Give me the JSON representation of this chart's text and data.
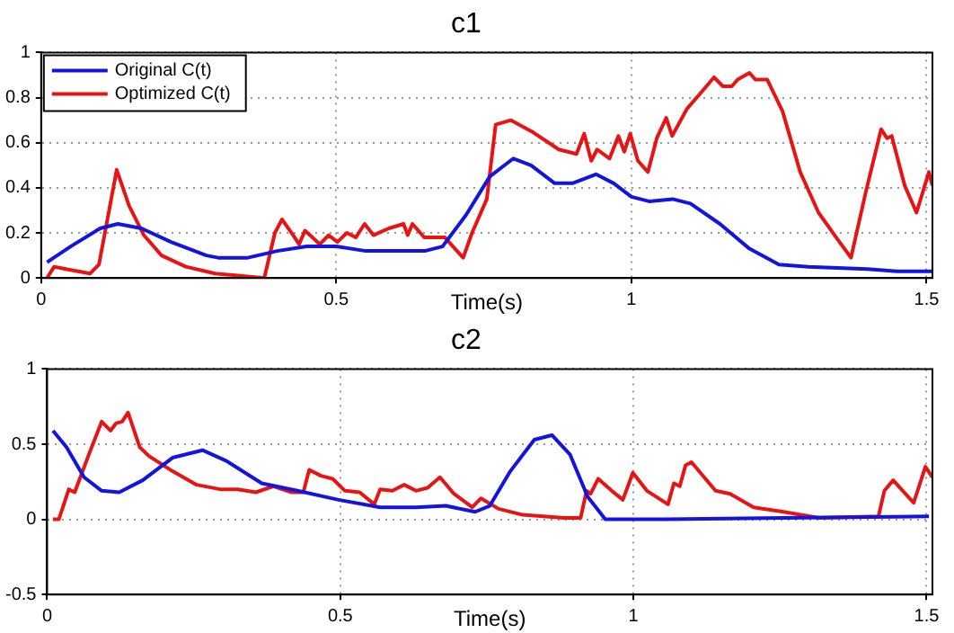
{
  "chart_data": [
    {
      "type": "line",
      "title": "c1",
      "xlabel": "Time(s)",
      "xlim": [
        0,
        1.51
      ],
      "xticks": [
        0,
        0.5,
        1,
        1.5
      ],
      "ylim": [
        0,
        1
      ],
      "yticks": [
        0,
        0.2,
        0.4,
        0.6,
        0.8,
        1
      ],
      "grid": true,
      "legend": "top left",
      "marker": "none",
      "series": [
        {
          "name": "Original C(t)",
          "color": "#1414e0",
          "x": [
            0.01,
            0.05,
            0.1,
            0.13,
            0.17,
            0.22,
            0.28,
            0.3,
            0.35,
            0.4,
            0.45,
            0.5,
            0.55,
            0.6,
            0.65,
            0.68,
            0.72,
            0.76,
            0.8,
            0.83,
            0.87,
            0.9,
            0.94,
            0.97,
            1.0,
            1.03,
            1.07,
            1.1,
            1.15,
            1.2,
            1.25,
            1.3,
            1.4,
            1.45,
            1.51
          ],
          "values": [
            0.07,
            0.14,
            0.22,
            0.24,
            0.22,
            0.16,
            0.1,
            0.09,
            0.09,
            0.12,
            0.14,
            0.14,
            0.12,
            0.12,
            0.12,
            0.14,
            0.28,
            0.45,
            0.53,
            0.5,
            0.42,
            0.42,
            0.46,
            0.42,
            0.36,
            0.34,
            0.35,
            0.33,
            0.24,
            0.13,
            0.06,
            0.05,
            0.04,
            0.03,
            0.03
          ]
        },
        {
          "name": "Optimized C(t)",
          "color": "#e81414",
          "x": [
            0.01,
            0.022,
            0.042,
            0.083,
            0.098,
            0.128,
            0.149,
            0.174,
            0.204,
            0.245,
            0.295,
            0.378,
            0.396,
            0.408,
            0.427,
            0.437,
            0.447,
            0.472,
            0.487,
            0.502,
            0.518,
            0.533,
            0.548,
            0.563,
            0.589,
            0.614,
            0.621,
            0.629,
            0.649,
            0.674,
            0.684,
            0.715,
            0.73,
            0.755,
            0.77,
            0.796,
            0.831,
            0.877,
            0.907,
            0.92,
            0.932,
            0.942,
            0.963,
            0.978,
            0.988,
            0.998,
            1.011,
            1.028,
            1.043,
            1.059,
            1.069,
            1.094,
            1.114,
            1.14,
            1.155,
            1.17,
            1.18,
            1.2,
            1.21,
            1.23,
            1.256,
            1.286,
            1.317,
            1.347,
            1.372,
            1.397,
            1.423,
            1.433,
            1.441,
            1.463,
            1.483,
            1.504,
            1.51
          ],
          "values": [
            0,
            0.05,
            0.04,
            0.02,
            0.06,
            0.48,
            0.32,
            0.19,
            0.1,
            0.05,
            0.02,
            0,
            0.2,
            0.26,
            0.19,
            0.15,
            0.21,
            0.15,
            0.19,
            0.16,
            0.2,
            0.18,
            0.24,
            0.19,
            0.22,
            0.24,
            0.19,
            0.24,
            0.18,
            0.18,
            0.18,
            0.09,
            0.2,
            0.35,
            0.68,
            0.7,
            0.65,
            0.57,
            0.55,
            0.64,
            0.52,
            0.57,
            0.53,
            0.63,
            0.56,
            0.64,
            0.52,
            0.47,
            0.62,
            0.71,
            0.63,
            0.75,
            0.81,
            0.89,
            0.85,
            0.85,
            0.88,
            0.91,
            0.88,
            0.88,
            0.74,
            0.47,
            0.29,
            0.18,
            0.09,
            0.38,
            0.66,
            0.62,
            0.63,
            0.41,
            0.29,
            0.47,
            0.41
          ]
        }
      ]
    },
    {
      "type": "line",
      "title": "c2",
      "xlabel": "Time(s)",
      "xlim": [
        0,
        1.51
      ],
      "xticks": [
        0,
        0.5,
        1,
        1.5
      ],
      "ylim": [
        -0.5,
        1
      ],
      "yticks": [
        -0.5,
        0,
        0.5,
        1
      ],
      "grid": true,
      "marker": "none",
      "series": [
        {
          "color": "#1414e0",
          "x": [
            0.01,
            0.033,
            0.063,
            0.093,
            0.123,
            0.163,
            0.214,
            0.265,
            0.305,
            0.366,
            0.427,
            0.497,
            0.568,
            0.629,
            0.68,
            0.73,
            0.755,
            0.79,
            0.831,
            0.861,
            0.892,
            0.922,
            0.952,
            1.054,
            1.256,
            1.504
          ],
          "values": [
            0.59,
            0.48,
            0.28,
            0.19,
            0.18,
            0.26,
            0.41,
            0.46,
            0.39,
            0.24,
            0.19,
            0.13,
            0.08,
            0.08,
            0.09,
            0.05,
            0.09,
            0.32,
            0.53,
            0.56,
            0.43,
            0.15,
            0,
            0,
            0.01,
            0.02
          ]
        },
        {
          "color": "#e81414",
          "x": [
            0.01,
            0.02,
            0.037,
            0.047,
            0.073,
            0.093,
            0.108,
            0.118,
            0.128,
            0.138,
            0.158,
            0.174,
            0.214,
            0.255,
            0.295,
            0.325,
            0.356,
            0.386,
            0.417,
            0.437,
            0.447,
            0.467,
            0.487,
            0.508,
            0.533,
            0.558,
            0.568,
            0.589,
            0.609,
            0.629,
            0.649,
            0.67,
            0.694,
            0.725,
            0.74,
            0.77,
            0.811,
            0.882,
            0.91,
            0.92,
            0.927,
            0.94,
            0.963,
            0.982,
            0.999,
            1.023,
            1.059,
            1.069,
            1.079,
            1.089,
            1.099,
            1.14,
            1.165,
            1.205,
            1.256,
            1.317,
            1.418,
            1.428,
            1.443,
            1.478,
            1.498,
            1.51
          ],
          "values": [
            0,
            0,
            0.2,
            0.18,
            0.45,
            0.65,
            0.59,
            0.64,
            0.65,
            0.71,
            0.48,
            0.42,
            0.32,
            0.23,
            0.2,
            0.2,
            0.18,
            0.22,
            0.18,
            0.18,
            0.33,
            0.29,
            0.27,
            0.19,
            0.18,
            0.1,
            0.2,
            0.19,
            0.23,
            0.19,
            0.21,
            0.28,
            0.17,
            0.08,
            0.14,
            0.07,
            0.03,
            0.01,
            0.01,
            0.19,
            0.17,
            0.27,
            0.19,
            0.13,
            0.31,
            0.19,
            0.1,
            0.24,
            0.22,
            0.36,
            0.38,
            0.19,
            0.17,
            0.08,
            0.05,
            0.01,
            0.02,
            0.19,
            0.26,
            0.11,
            0.35,
            0.28
          ]
        }
      ]
    }
  ]
}
